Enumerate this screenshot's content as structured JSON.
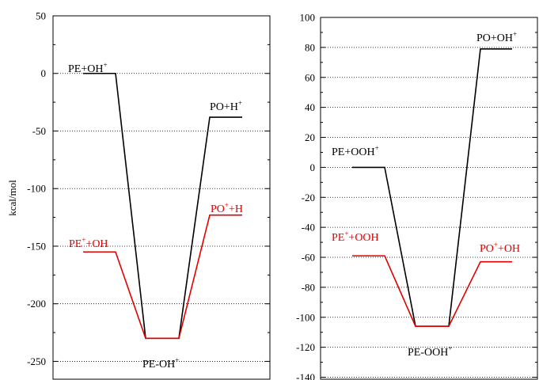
{
  "chart_data": [
    {
      "type": "line",
      "title": "",
      "xlabel": "",
      "ylabel": "kcal/mol",
      "ylim": [
        -260,
        50
      ],
      "yticks": [
        50,
        0,
        -50,
        -100,
        -150,
        -200,
        -250
      ],
      "grid": "horizontal dotted",
      "series": [
        {
          "color": "#000000",
          "states": [
            {
              "label": "PE+OH",
              "sup": "+",
              "value": 0
            },
            {
              "label": "PE-OH",
              "sup": "+",
              "value": -230
            },
            {
              "label": "PO+H",
              "sup": "+",
              "value": -38
            }
          ]
        },
        {
          "color": "#e00000",
          "states": [
            {
              "label": "PE",
              "sup": "+",
              "label2": "+OH",
              "value": -155
            },
            {
              "label": "PE-OH",
              "sup": "+",
              "value": -230
            },
            {
              "label": "PO",
              "sup": "+",
              "label2": "+H",
              "value": -123
            }
          ]
        }
      ]
    },
    {
      "type": "line",
      "title": "",
      "xlabel": "",
      "ylabel": "",
      "ylim": [
        -140,
        100
      ],
      "yticks": [
        100,
        80,
        60,
        40,
        20,
        0,
        -20,
        -40,
        -60,
        -80,
        -100,
        -120,
        -140
      ],
      "grid": "horizontal dotted",
      "series": [
        {
          "color": "#000000",
          "states": [
            {
              "label": "PE+OOH",
              "sup": "+",
              "value": 0
            },
            {
              "label": "PE-OOH",
              "sup": "+",
              "value": -106
            },
            {
              "label": "PO+OH",
              "sup": "+",
              "value": 79
            }
          ]
        },
        {
          "color": "#e00000",
          "states": [
            {
              "label": "PE",
              "sup": "+",
              "label2": "+OOH",
              "value": -59
            },
            {
              "label": "PE-OOH",
              "sup": "+",
              "value": -106
            },
            {
              "label": "PO",
              "sup": "+",
              "label2": "+OH",
              "value": -63
            }
          ]
        }
      ]
    }
  ],
  "labels": {
    "left_ylabel": "kcal/mol",
    "l_top_left": "PE+OH",
    "l_top_left_sup": "+",
    "l_top_right": "PO+H",
    "l_top_right_sup": "+",
    "l_red_left_a": "PE",
    "l_red_left_sup": "+",
    "l_red_left_b": "+OH",
    "l_red_right_a": "PO",
    "l_red_right_sup": "+",
    "l_red_right_b": "+H",
    "l_bottom": "PE-OH",
    "l_bottom_sup": "+",
    "r_top_left": "PE+OOH",
    "r_top_left_sup": "+",
    "r_top_right": "PO+OH",
    "r_top_right_sup": "+",
    "r_red_left_a": "PE",
    "r_red_left_sup": "+",
    "r_red_left_b": "+OOH",
    "r_red_right_a": "PO",
    "r_red_right_sup": "+",
    "r_red_right_b": "+OH",
    "r_bottom": "PE-OOH",
    "r_bottom_sup": "+"
  },
  "colors": {
    "black": "#000000",
    "red": "#e00000"
  }
}
